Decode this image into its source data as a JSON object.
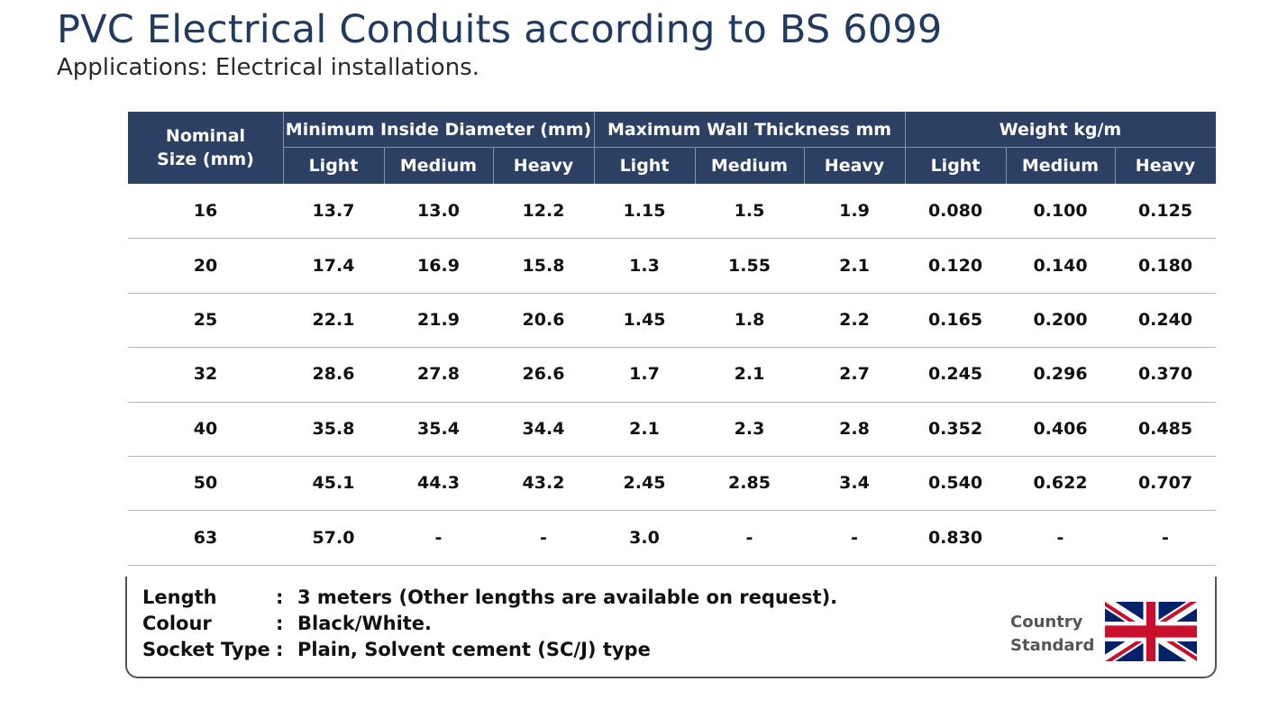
{
  "header": {
    "title": "PVC Electrical Conduits according to BS 6099",
    "subtitle": "Applications: Electrical installations."
  },
  "table": {
    "first_header": "Nominal Size (mm)",
    "groups": [
      {
        "label": "Minimum Inside Diameter (mm)",
        "sub": [
          "Light",
          "Medium",
          "Heavy"
        ]
      },
      {
        "label": "Maximum Wall Thickness mm",
        "sub": [
          "Light",
          "Medium",
          "Heavy"
        ]
      },
      {
        "label": "Weight kg/m",
        "sub": [
          "Light",
          "Medium",
          "Heavy"
        ]
      }
    ],
    "rows": [
      [
        "16",
        "13.7",
        "13.0",
        "12.2",
        "1.15",
        "1.5",
        "1.9",
        "0.080",
        "0.100",
        "0.125"
      ],
      [
        "20",
        "17.4",
        "16.9",
        "15.8",
        "1.3",
        "1.55",
        "2.1",
        "0.120",
        "0.140",
        "0.180"
      ],
      [
        "25",
        "22.1",
        "21.9",
        "20.6",
        "1.45",
        "1.8",
        "2.2",
        "0.165",
        "0.200",
        "0.240"
      ],
      [
        "32",
        "28.6",
        "27.8",
        "26.6",
        "1.7",
        "2.1",
        "2.7",
        "0.245",
        "0.296",
        "0.370"
      ],
      [
        "40",
        "35.8",
        "35.4",
        "34.4",
        "2.1",
        "2.3",
        "2.8",
        "0.352",
        "0.406",
        "0.485"
      ],
      [
        "50",
        "45.1",
        "44.3",
        "43.2",
        "2.45",
        "2.85",
        "3.4",
        "0.540",
        "0.622",
        "0.707"
      ],
      [
        "63",
        "57.0",
        "-",
        "-",
        "3.0",
        "-",
        "-",
        "0.830",
        "-",
        "-"
      ]
    ]
  },
  "specs": {
    "separator": ":",
    "items": [
      {
        "label": "Length",
        "value": "3 meters (Other lengths are available on request)."
      },
      {
        "label": "Colour",
        "value": "Black/White."
      },
      {
        "label": "Socket Type",
        "value": "Plain, Solvent cement (SC/J) type"
      }
    ]
  },
  "badge": [
    "Country",
    "Standard"
  ]
}
